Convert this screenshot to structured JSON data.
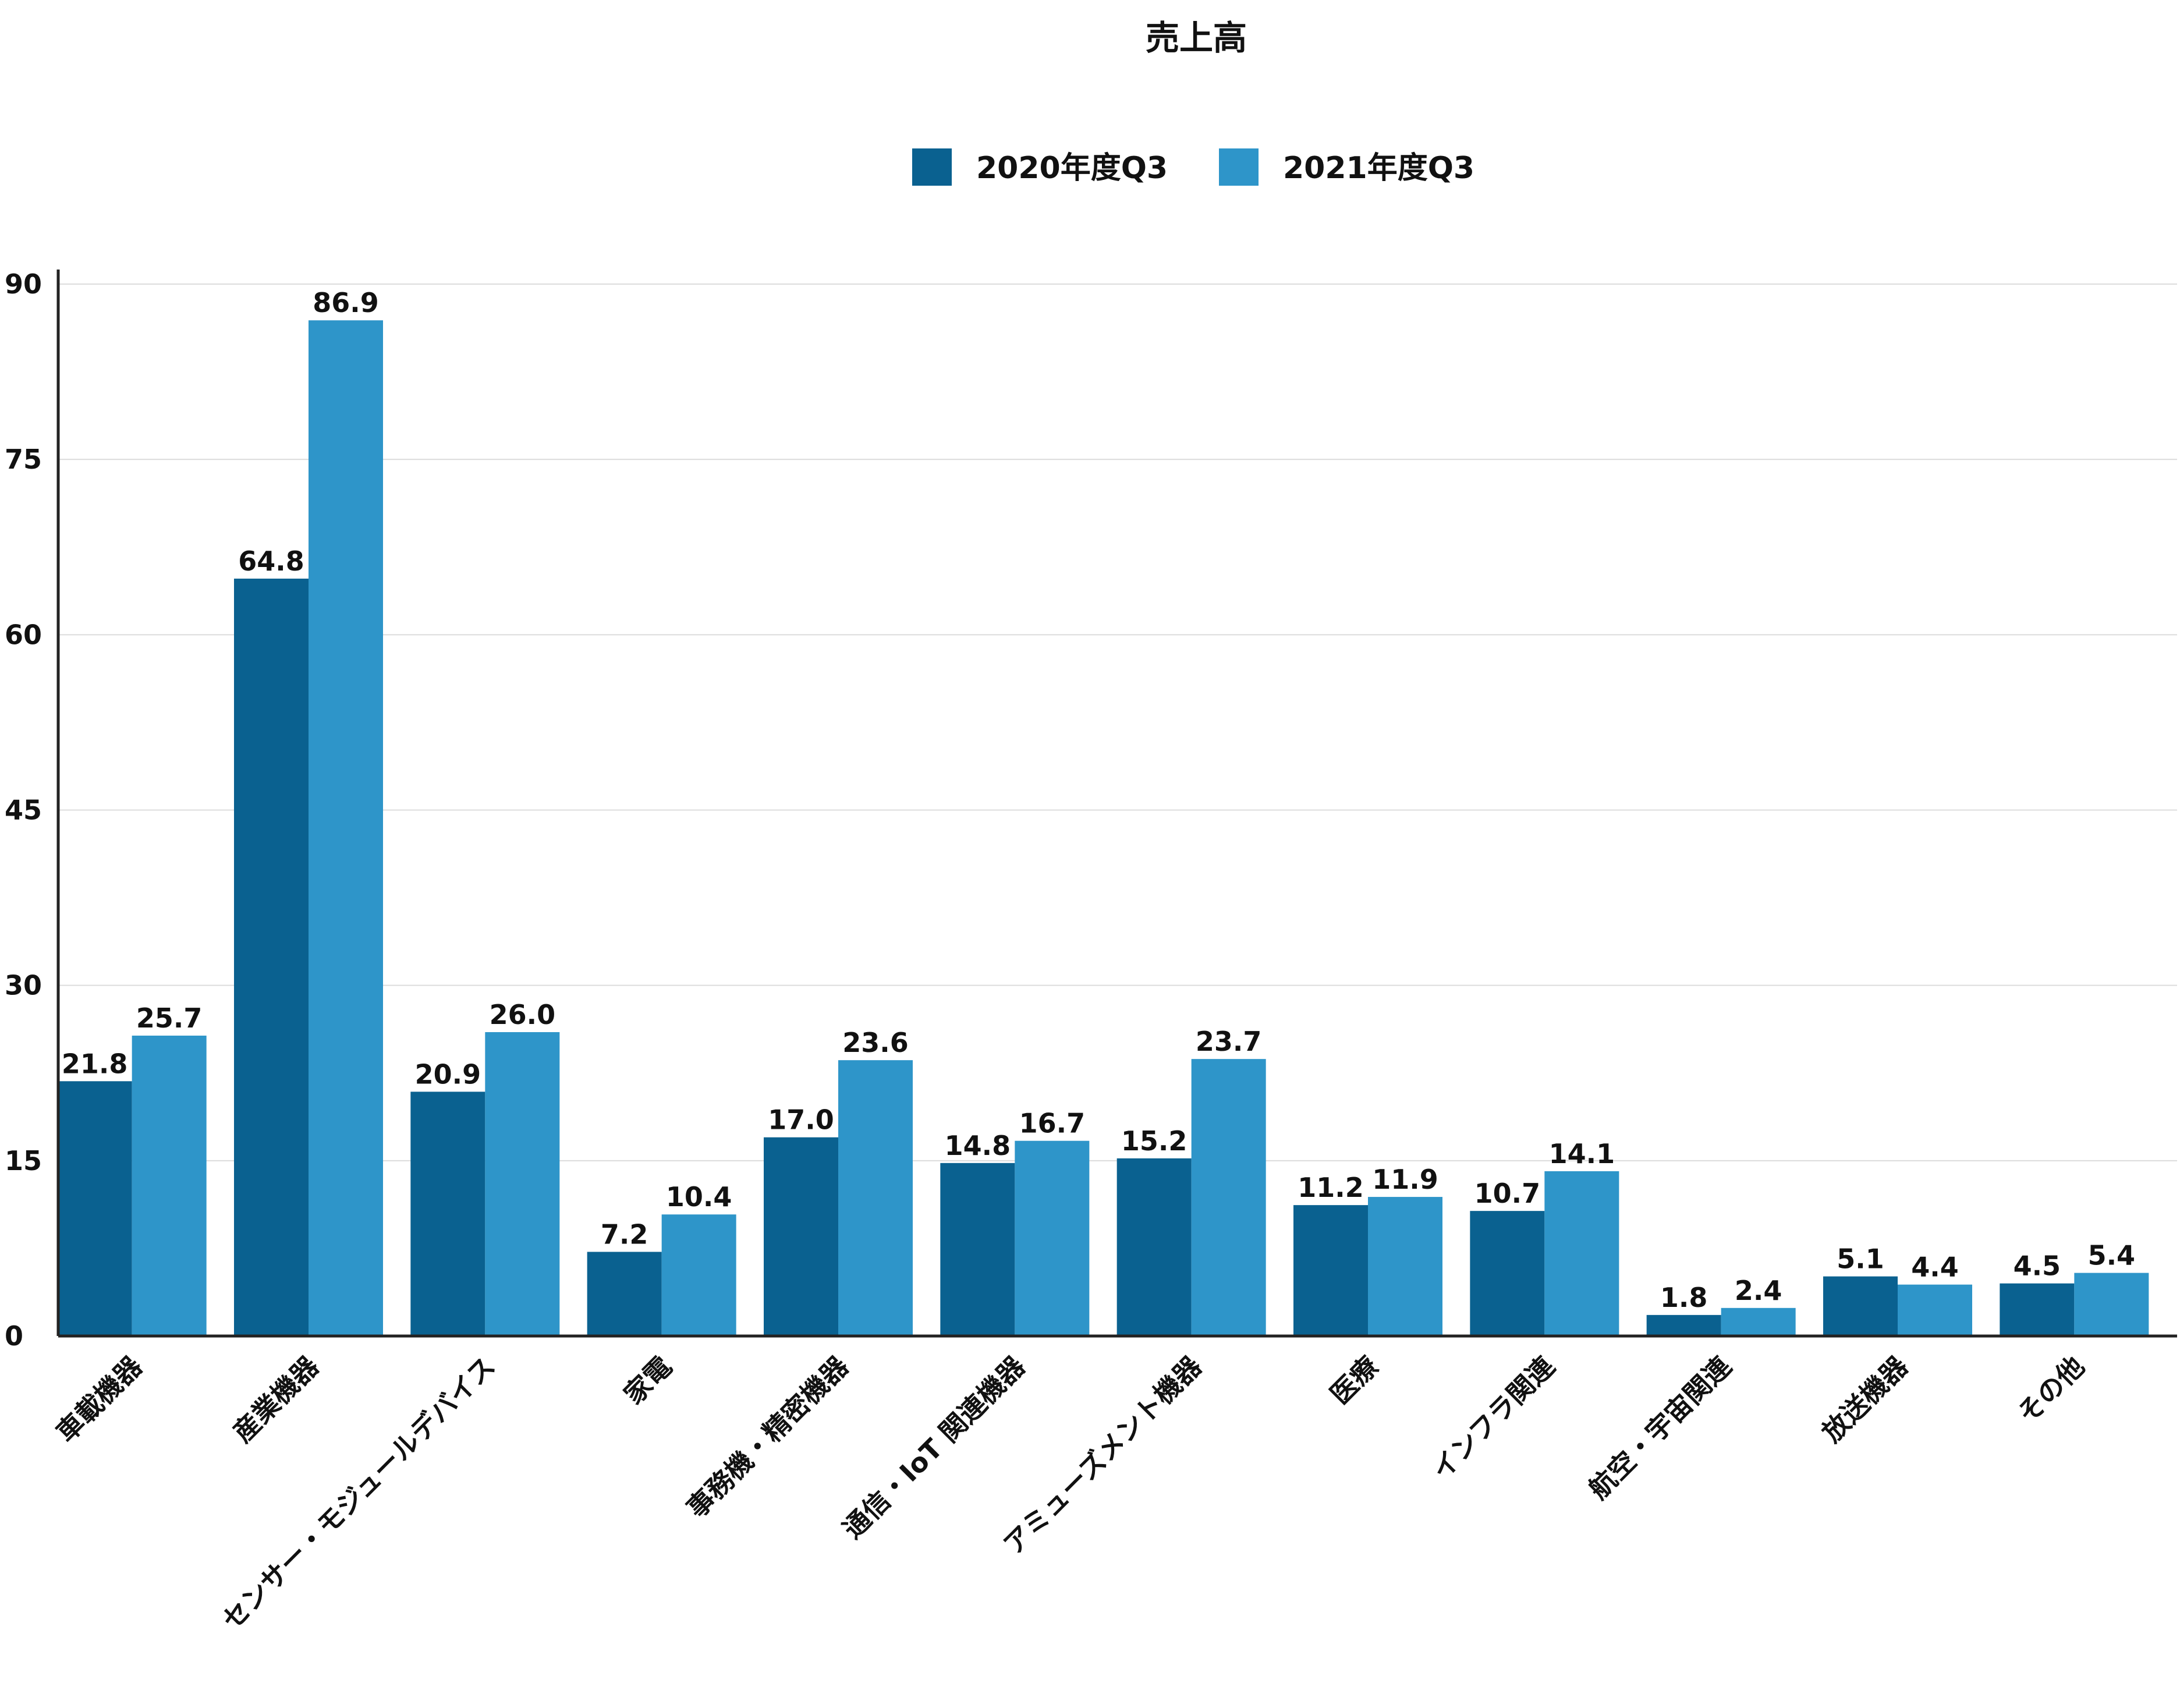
{
  "chart_data": {
    "type": "bar",
    "title": "売上高",
    "xlabel": "",
    "ylabel": "",
    "ylim": [
      0,
      90
    ],
    "yticks": [
      0,
      15,
      30,
      45,
      60,
      75,
      90
    ],
    "grid": true,
    "legend_position": "top-center",
    "categories": [
      "車載機器",
      "産業機器",
      "センサー・モジュールデバイス",
      "家電",
      "事務機・精密機器",
      "通信・IoT 関連機器",
      "アミューズメント機器",
      "医療",
      "インフラ関連",
      "航空・宇宙関連",
      "放送機器",
      "その他"
    ],
    "series": [
      {
        "name": "2020年度Q3",
        "color": "#0a6190",
        "values": [
          21.8,
          64.8,
          20.9,
          7.2,
          17.0,
          14.8,
          15.2,
          11.2,
          10.7,
          1.8,
          5.1,
          4.5
        ]
      },
      {
        "name": "2021年度Q3",
        "color": "#2e95c9",
        "values": [
          25.7,
          86.9,
          26.0,
          10.4,
          23.6,
          16.7,
          23.7,
          11.9,
          14.1,
          2.4,
          4.4,
          5.4
        ]
      }
    ]
  }
}
